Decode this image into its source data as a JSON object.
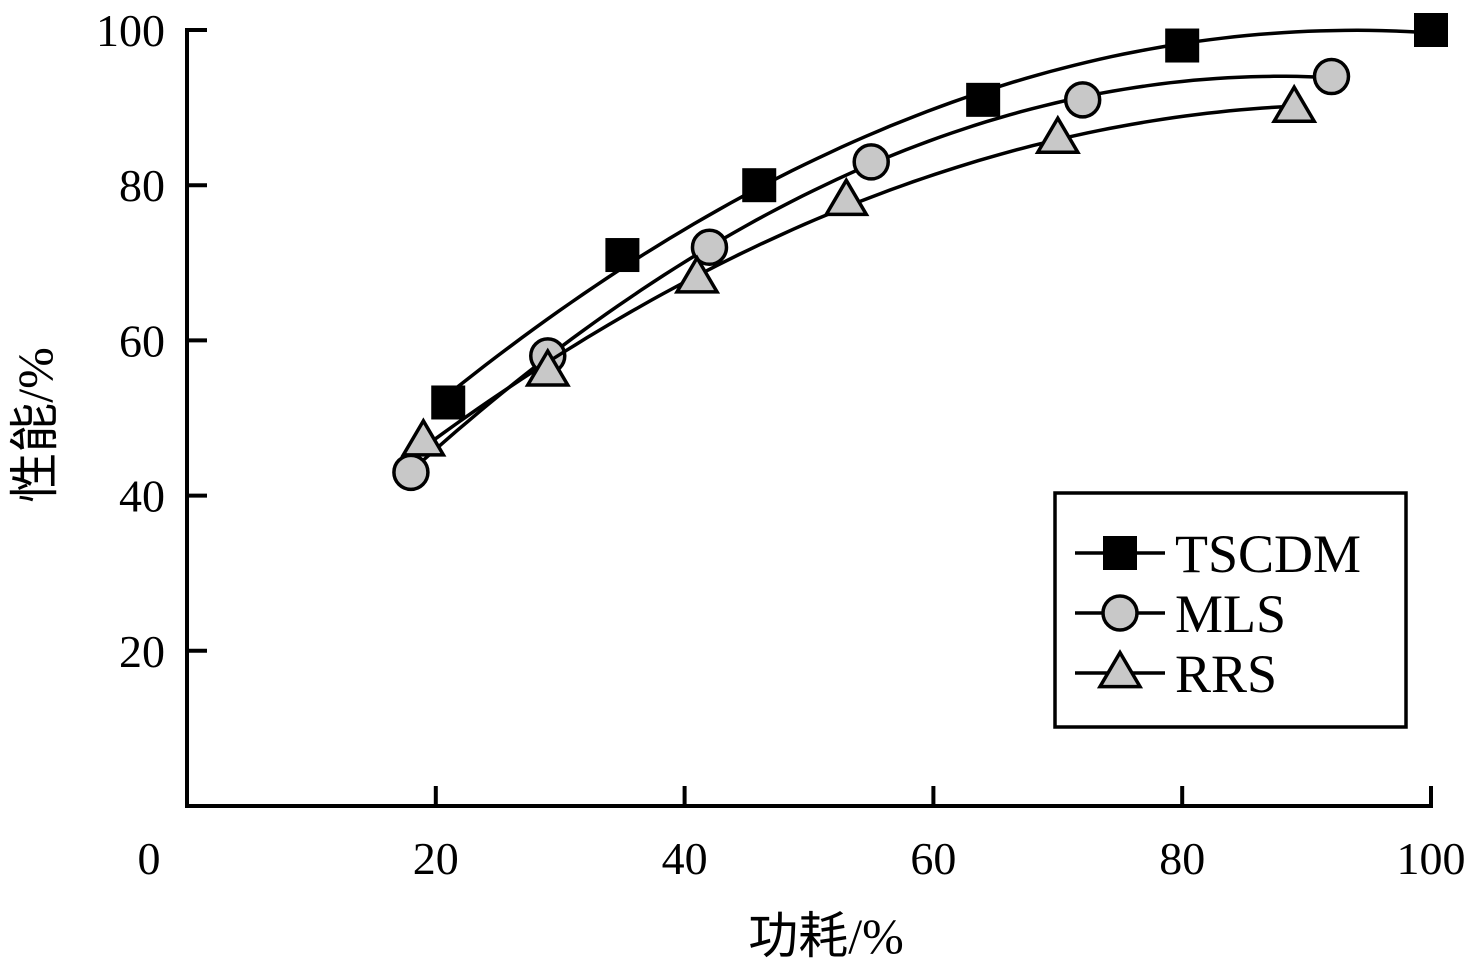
{
  "chart_data": {
    "type": "line",
    "xlabel": "功耗/%",
    "ylabel": "性能/%",
    "xlim": [
      0,
      100
    ],
    "ylim": [
      0,
      100
    ],
    "xticks": [
      "0",
      "20",
      "40",
      "60",
      "80",
      "100"
    ],
    "yticks": [
      "20",
      "40",
      "60",
      "80",
      "100"
    ],
    "grid": false,
    "legend_position": "bottom-right",
    "series": [
      {
        "name": "TSCDM",
        "marker": "square",
        "marker_color": "#000000",
        "x": [
          21,
          35,
          46,
          64,
          80,
          100
        ],
        "y": [
          52,
          71,
          80,
          91,
          98,
          100
        ]
      },
      {
        "name": "MLS",
        "marker": "circle",
        "marker_color": "#c8c8c8",
        "x": [
          18,
          29,
          42,
          55,
          72,
          92
        ],
        "y": [
          43,
          58,
          72,
          83,
          91,
          94
        ]
      },
      {
        "name": "RRS",
        "marker": "triangle",
        "marker_color": "#c8c8c8",
        "x": [
          19,
          29,
          41,
          53,
          70,
          89
        ],
        "y": [
          47,
          56,
          68,
          78,
          86,
          90
        ]
      }
    ]
  }
}
